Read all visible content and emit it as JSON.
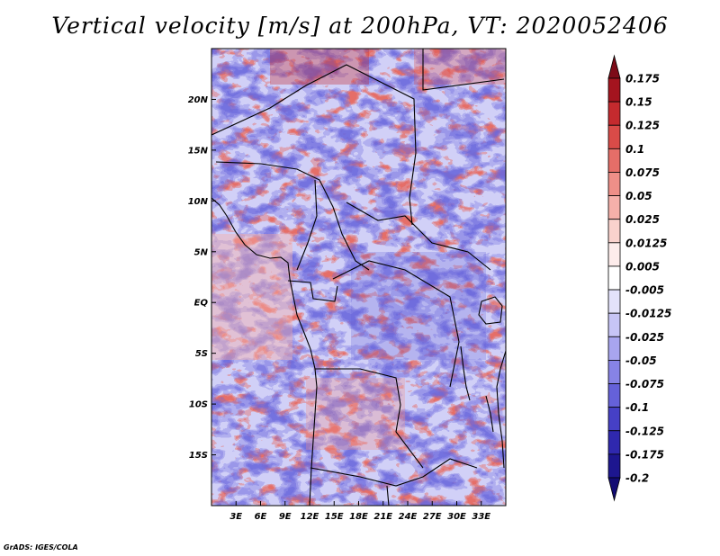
{
  "title": "Vertical velocity [m/s] at 200hPa, VT: 2020052406",
  "footer": "GrADS: IGES/COLA",
  "map": {
    "lat_range": [
      -20,
      25
    ],
    "lon_range": [
      0,
      36
    ],
    "lat_labels": [
      {
        "lat": 20,
        "label": "20N"
      },
      {
        "lat": 15,
        "label": "15N"
      },
      {
        "lat": 10,
        "label": "10N"
      },
      {
        "lat": 5,
        "label": "5N"
      },
      {
        "lat": 0,
        "label": "EQ"
      },
      {
        "lat": -5,
        "label": "5S"
      },
      {
        "lat": -10,
        "label": "10S"
      },
      {
        "lat": -15,
        "label": "15S"
      }
    ],
    "lon_labels": [
      {
        "lon": 3,
        "label": "3E"
      },
      {
        "lon": 6,
        "label": "6E"
      },
      {
        "lon": 9,
        "label": "9E"
      },
      {
        "lon": 12,
        "label": "12E"
      },
      {
        "lon": 15,
        "label": "15E"
      },
      {
        "lon": 18,
        "label": "18E"
      },
      {
        "lon": 21,
        "label": "21E"
      },
      {
        "lon": 24,
        "label": "24E"
      },
      {
        "lon": 27,
        "label": "27E"
      },
      {
        "lon": 30,
        "label": "30E"
      },
      {
        "lon": 33,
        "label": "33E"
      }
    ]
  },
  "colorbar": {
    "labels": [
      "0.175",
      "0.15",
      "0.125",
      "0.1",
      "0.075",
      "0.05",
      "0.025",
      "0.0125",
      "0.005",
      "-0.005",
      "-0.0125",
      "-0.025",
      "-0.05",
      "-0.075",
      "-0.1",
      "-0.125",
      "-0.175",
      "-0.2"
    ],
    "colors": [
      "#7d0b18",
      "#a4141f",
      "#c42a2e",
      "#d94b48",
      "#e56e68",
      "#ee8f88",
      "#f5b0aa",
      "#fad2cd",
      "#fdeceb",
      "#ffffff",
      "#e3e2fb",
      "#c7c5f6",
      "#a8a5ef",
      "#8783e6",
      "#6561d9",
      "#4640c6",
      "#2f28ae",
      "#1d168f",
      "#120b73"
    ]
  }
}
